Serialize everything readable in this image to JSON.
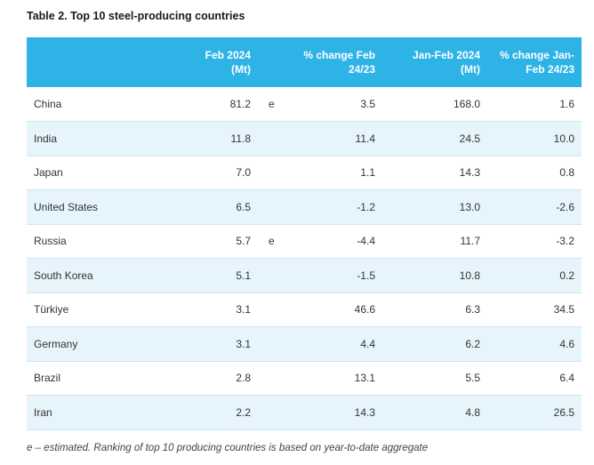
{
  "title": "Table 2. Top 10 steel-producing countries",
  "columns": {
    "feb_line1": "Feb 2024",
    "feb_line2": "(Mt)",
    "chg_line1": "% change Feb",
    "chg_line2": "24/23",
    "jan_line1": "Jan-Feb 2024",
    "jan_line2": "(Mt)",
    "chg2_line1": "% change Jan-",
    "chg2_line2": "Feb 24/23"
  },
  "rows": [
    {
      "country": "China",
      "feb": "81.2",
      "flag": "e",
      "chg": "3.5",
      "jan": "168.0",
      "chg2": "1.6"
    },
    {
      "country": "India",
      "feb": "11.8",
      "flag": "",
      "chg": "11.4",
      "jan": "24.5",
      "chg2": "10.0"
    },
    {
      "country": "Japan",
      "feb": "7.0",
      "flag": "",
      "chg": "1.1",
      "jan": "14.3",
      "chg2": "0.8"
    },
    {
      "country": "United States",
      "feb": "6.5",
      "flag": "",
      "chg": "-1.2",
      "jan": "13.0",
      "chg2": "-2.6"
    },
    {
      "country": "Russia",
      "feb": "5.7",
      "flag": "e",
      "chg": "-4.4",
      "jan": "11.7",
      "chg2": "-3.2"
    },
    {
      "country": "South Korea",
      "feb": "5.1",
      "flag": "",
      "chg": "-1.5",
      "jan": "10.8",
      "chg2": "0.2"
    },
    {
      "country": "Türkiye",
      "feb": "3.1",
      "flag": "",
      "chg": "46.6",
      "jan": "6.3",
      "chg2": "34.5"
    },
    {
      "country": "Germany",
      "feb": "3.1",
      "flag": "",
      "chg": "4.4",
      "jan": "6.2",
      "chg2": "4.6"
    },
    {
      "country": "Brazil",
      "feb": "2.8",
      "flag": "",
      "chg": "13.1",
      "jan": "5.5",
      "chg2": "6.4"
    },
    {
      "country": "Iran",
      "feb": "2.2",
      "flag": "",
      "chg": "14.3",
      "jan": "4.8",
      "chg2": "26.5"
    }
  ],
  "footnote": "e – estimated. Ranking of top 10 producing countries is based on year-to-date aggregate",
  "colors": {
    "header": "#2eb3e7",
    "stripe": "#e6f5fb"
  }
}
